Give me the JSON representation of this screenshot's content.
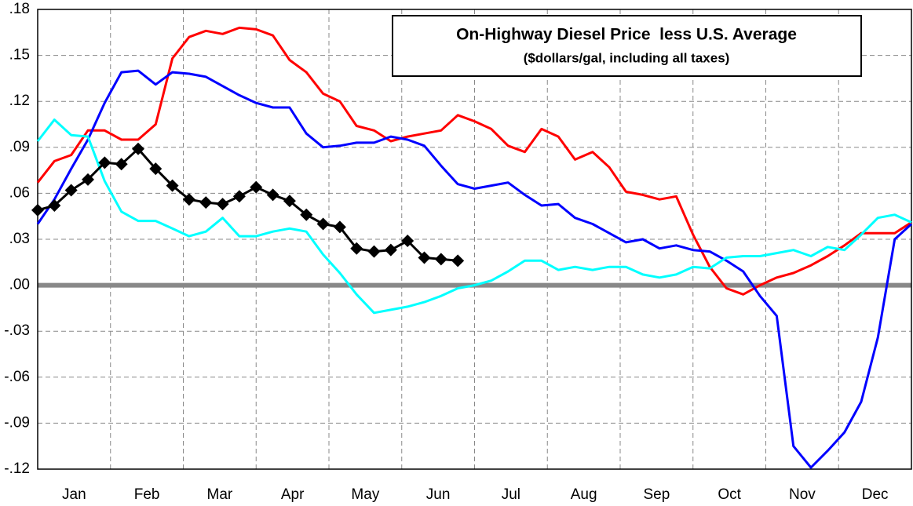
{
  "chart_data": {
    "type": "line",
    "title": "On-Highway Diesel Price  less U.S. Average",
    "subtitle": "($dollars/gal, including all taxes)",
    "x": [
      0,
      0.23,
      0.46,
      0.69,
      0.92,
      1.15,
      1.38,
      1.62,
      1.85,
      2.08,
      2.31,
      2.54,
      2.77,
      3,
      3.23,
      3.46,
      3.69,
      3.92,
      4.15,
      4.38,
      4.62,
      4.85,
      5.08,
      5.31,
      5.54,
      5.77,
      6,
      6.23,
      6.46,
      6.69,
      6.92,
      7.15,
      7.38,
      7.62,
      7.85,
      8.08,
      8.31,
      8.54,
      8.77,
      9,
      9.23,
      9.46,
      9.69,
      9.92,
      10.15,
      10.38,
      10.62,
      10.85,
      11.08,
      11.31,
      11.54,
      11.77,
      12
    ],
    "xlim": [
      0,
      12
    ],
    "xticks": [
      {
        "value": 0.5,
        "label": "Jan"
      },
      {
        "value": 1.5,
        "label": "Feb"
      },
      {
        "value": 2.5,
        "label": "Mar"
      },
      {
        "value": 3.5,
        "label": "Apr"
      },
      {
        "value": 4.5,
        "label": "May"
      },
      {
        "value": 5.5,
        "label": "Jun"
      },
      {
        "value": 6.5,
        "label": "Jul"
      },
      {
        "value": 7.5,
        "label": "Aug"
      },
      {
        "value": 8.5,
        "label": "Sep"
      },
      {
        "value": 9.5,
        "label": "Oct"
      },
      {
        "value": 10.5,
        "label": "Nov"
      },
      {
        "value": 11.5,
        "label": "Dec"
      }
    ],
    "ylim": [
      -0.12,
      0.18
    ],
    "yticks": [
      {
        "value": 0.18,
        "label": ".18"
      },
      {
        "value": 0.15,
        "label": ".15"
      },
      {
        "value": 0.12,
        "label": ".12"
      },
      {
        "value": 0.09,
        "label": ".09"
      },
      {
        "value": 0.06,
        "label": ".06"
      },
      {
        "value": 0.03,
        "label": ".03"
      },
      {
        "value": 0,
        "label": ".00"
      },
      {
        "value": -0.03,
        "label": "-.03"
      },
      {
        "value": -0.06,
        "label": "-.06"
      },
      {
        "value": -0.09,
        "label": "-.09"
      },
      {
        "value": -0.12,
        "label": "-.12"
      }
    ],
    "grid": true,
    "zero_line": true,
    "series": [
      {
        "color": "#ff0000",
        "values": [
          0.067,
          0.081,
          0.085,
          0.101,
          0.101,
          0.095,
          0.095,
          0.105,
          0.148,
          0.162,
          0.166,
          0.164,
          0.168,
          0.167,
          0.163,
          0.147,
          0.139,
          0.125,
          0.12,
          0.104,
          0.101,
          0.094,
          0.097,
          0.099,
          0.101,
          0.111,
          0.107,
          0.102,
          0.091,
          0.087,
          0.102,
          0.097,
          0.082,
          0.087,
          0.077,
          0.061,
          0.059,
          0.056,
          0.058,
          0.033,
          0.012,
          -0.002,
          -0.006,
          0,
          0.005,
          0.008,
          0.013,
          0.019,
          0.026,
          0.034,
          0.034,
          0.034,
          0.041
        ]
      },
      {
        "color": "#0000ff",
        "values": [
          0.04,
          0.056,
          0.076,
          0.095,
          0.119,
          0.139,
          0.14,
          0.131,
          0.139,
          0.138,
          0.136,
          0.13,
          0.124,
          0.119,
          0.116,
          0.116,
          0.099,
          0.09,
          0.091,
          0.093,
          0.093,
          0.097,
          0.095,
          0.091,
          0.078,
          0.066,
          0.063,
          0.065,
          0.067,
          0.059,
          0.052,
          0.053,
          0.044,
          0.04,
          0.034,
          0.028,
          0.03,
          0.024,
          0.026,
          0.023,
          0.022,
          0.016,
          0.009,
          -0.007,
          -0.02,
          -0.105,
          -0.119,
          -0.108,
          -0.096,
          -0.076,
          -0.034,
          0.03,
          0.04
        ]
      },
      {
        "color": "#00ffff",
        "values": [
          0.094,
          0.108,
          0.098,
          0.097,
          0.068,
          0.048,
          0.042,
          0.042,
          0.037,
          0.032,
          0.035,
          0.044,
          0.032,
          0.032,
          0.035,
          0.037,
          0.035,
          0.02,
          0.008,
          -0.006,
          -0.018,
          -0.016,
          -0.014,
          -0.011,
          -0.007,
          -0.002,
          0,
          0.003,
          0.009,
          0.016,
          0.016,
          0.01,
          0.012,
          0.01,
          0.012,
          0.012,
          0.007,
          0.005,
          0.007,
          0.012,
          0.011,
          0.018,
          0.019,
          0.019,
          0.021,
          0.023,
          0.019,
          0.025,
          0.023,
          0.033,
          0.044,
          0.046,
          0.041
        ]
      },
      {
        "color": "#000000",
        "marker": "diamond",
        "values": [
          0.049,
          0.052,
          0.062,
          0.069,
          0.08,
          0.079,
          0.089,
          0.076,
          0.065,
          0.056,
          0.054,
          0.053,
          0.058,
          0.064,
          0.059,
          0.055,
          0.046,
          0.04,
          0.038,
          0.024,
          0.022,
          0.023,
          0.029,
          0.018,
          0.017,
          0.016,
          null,
          null,
          null,
          null,
          null,
          null,
          null,
          null,
          null,
          null,
          null,
          null,
          null,
          null,
          null,
          null,
          null,
          null,
          null,
          null,
          null,
          null,
          null,
          null,
          null,
          null,
          null
        ]
      }
    ]
  }
}
